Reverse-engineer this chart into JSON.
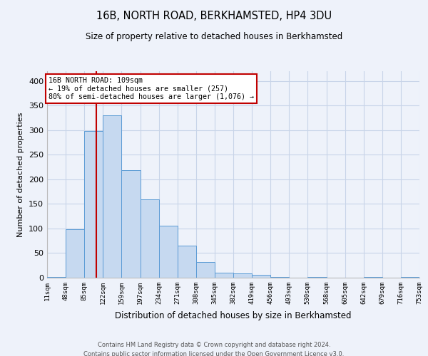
{
  "title": "16B, NORTH ROAD, BERKHAMSTED, HP4 3DU",
  "subtitle": "Size of property relative to detached houses in Berkhamsted",
  "xlabel": "Distribution of detached houses by size in Berkhamsted",
  "ylabel": "Number of detached properties",
  "footer_line1": "Contains HM Land Registry data © Crown copyright and database right 2024.",
  "footer_line2": "Contains public sector information licensed under the Open Government Licence v3.0.",
  "bar_edges": [
    11,
    48,
    85,
    122,
    159,
    197,
    234,
    271,
    308,
    345,
    382,
    419,
    456,
    493,
    530,
    568,
    605,
    642,
    679,
    716,
    753
  ],
  "bar_values": [
    2,
    98,
    299,
    330,
    219,
    160,
    106,
    65,
    32,
    10,
    8,
    6,
    2,
    0,
    2,
    0,
    0,
    2,
    0,
    2
  ],
  "bar_color": "#c6d9f0",
  "bar_edge_color": "#5b9bd5",
  "property_size": 109,
  "vline_color": "#c00000",
  "annotation_line1": "16B NORTH ROAD: 109sqm",
  "annotation_line2": "← 19% of detached houses are smaller (257)",
  "annotation_line3": "80% of semi-detached houses are larger (1,076) →",
  "annotation_box_color": "#ffffff",
  "annotation_box_edge": "#c00000",
  "grid_color": "#c8d4e8",
  "ylim": [
    0,
    420
  ],
  "yticks": [
    0,
    50,
    100,
    150,
    200,
    250,
    300,
    350,
    400
  ],
  "background_color": "#eef2fa",
  "tick_labels": [
    "11sqm",
    "48sqm",
    "85sqm",
    "122sqm",
    "159sqm",
    "197sqm",
    "234sqm",
    "271sqm",
    "308sqm",
    "345sqm",
    "382sqm",
    "419sqm",
    "456sqm",
    "493sqm",
    "530sqm",
    "568sqm",
    "605sqm",
    "642sqm",
    "679sqm",
    "716sqm",
    "753sqm"
  ]
}
